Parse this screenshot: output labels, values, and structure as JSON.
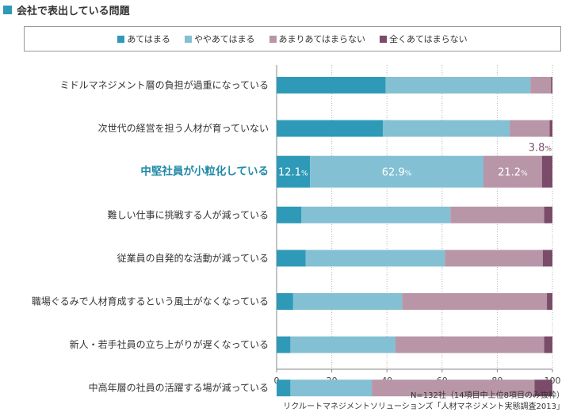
{
  "title": "会社で表出している問題",
  "colors": {
    "title_square": "#2e9ab8",
    "highlight_label": "#1f8aa8",
    "axis": "#888888"
  },
  "chart_data": {
    "type": "bar",
    "orientation": "horizontal",
    "stacked": true,
    "categories": [
      "ミドルマネジメント層の負担が過重になっている",
      "次世代の経営を担う人材が育っていない",
      "中堅社員が小粒化している",
      "難しい仕事に挑戦する人が減っている",
      "従業員の自発的な活動が減っている",
      "職場ぐるみで人材育成するという風土がなくなっている",
      "新人・若手社員の立ち上がりが遅くなっている",
      "中高年層の社員の活躍する場が減っている"
    ],
    "highlight_category_index": 2,
    "series": [
      {
        "name": "あてはまる",
        "color": "#2e9ab8",
        "values": [
          39.5,
          38.5,
          12.1,
          9.0,
          10.5,
          6.0,
          5.0,
          5.0
        ]
      },
      {
        "name": "ややあてはまる",
        "color": "#84c0d3",
        "values": [
          52.5,
          46.0,
          62.9,
          54.0,
          50.5,
          39.5,
          38.0,
          29.5
        ]
      },
      {
        "name": "あまりあてはまらない",
        "color": "#b896a8",
        "values": [
          7.5,
          14.5,
          21.2,
          34.0,
          35.5,
          52.5,
          54.0,
          59.0
        ]
      },
      {
        "name": "全くあてはまらない",
        "color": "#7b4c6a",
        "values": [
          0.5,
          1.0,
          3.8,
          3.0,
          3.5,
          2.0,
          3.0,
          6.5
        ]
      }
    ],
    "data_labels": [
      {
        "category_index": 2,
        "series_index": 0,
        "number": "12.1",
        "unit": "%"
      },
      {
        "category_index": 2,
        "series_index": 1,
        "number": "62.9",
        "unit": "%"
      },
      {
        "category_index": 2,
        "series_index": 2,
        "number": "21.2",
        "unit": "%"
      },
      {
        "category_index": 2,
        "series_index": 3,
        "number": "3.8",
        "unit": "%"
      }
    ],
    "xlim": [
      0,
      100
    ],
    "xticks": [
      0,
      20,
      40,
      60,
      80,
      100
    ],
    "grid": true,
    "legend_position": "top"
  },
  "notes": [
    "N=132社（14項目中上位8項目のみ抜粋）",
    "リクルートマネジメントソリューションズ「人材マネジメント実態調査2013」"
  ]
}
